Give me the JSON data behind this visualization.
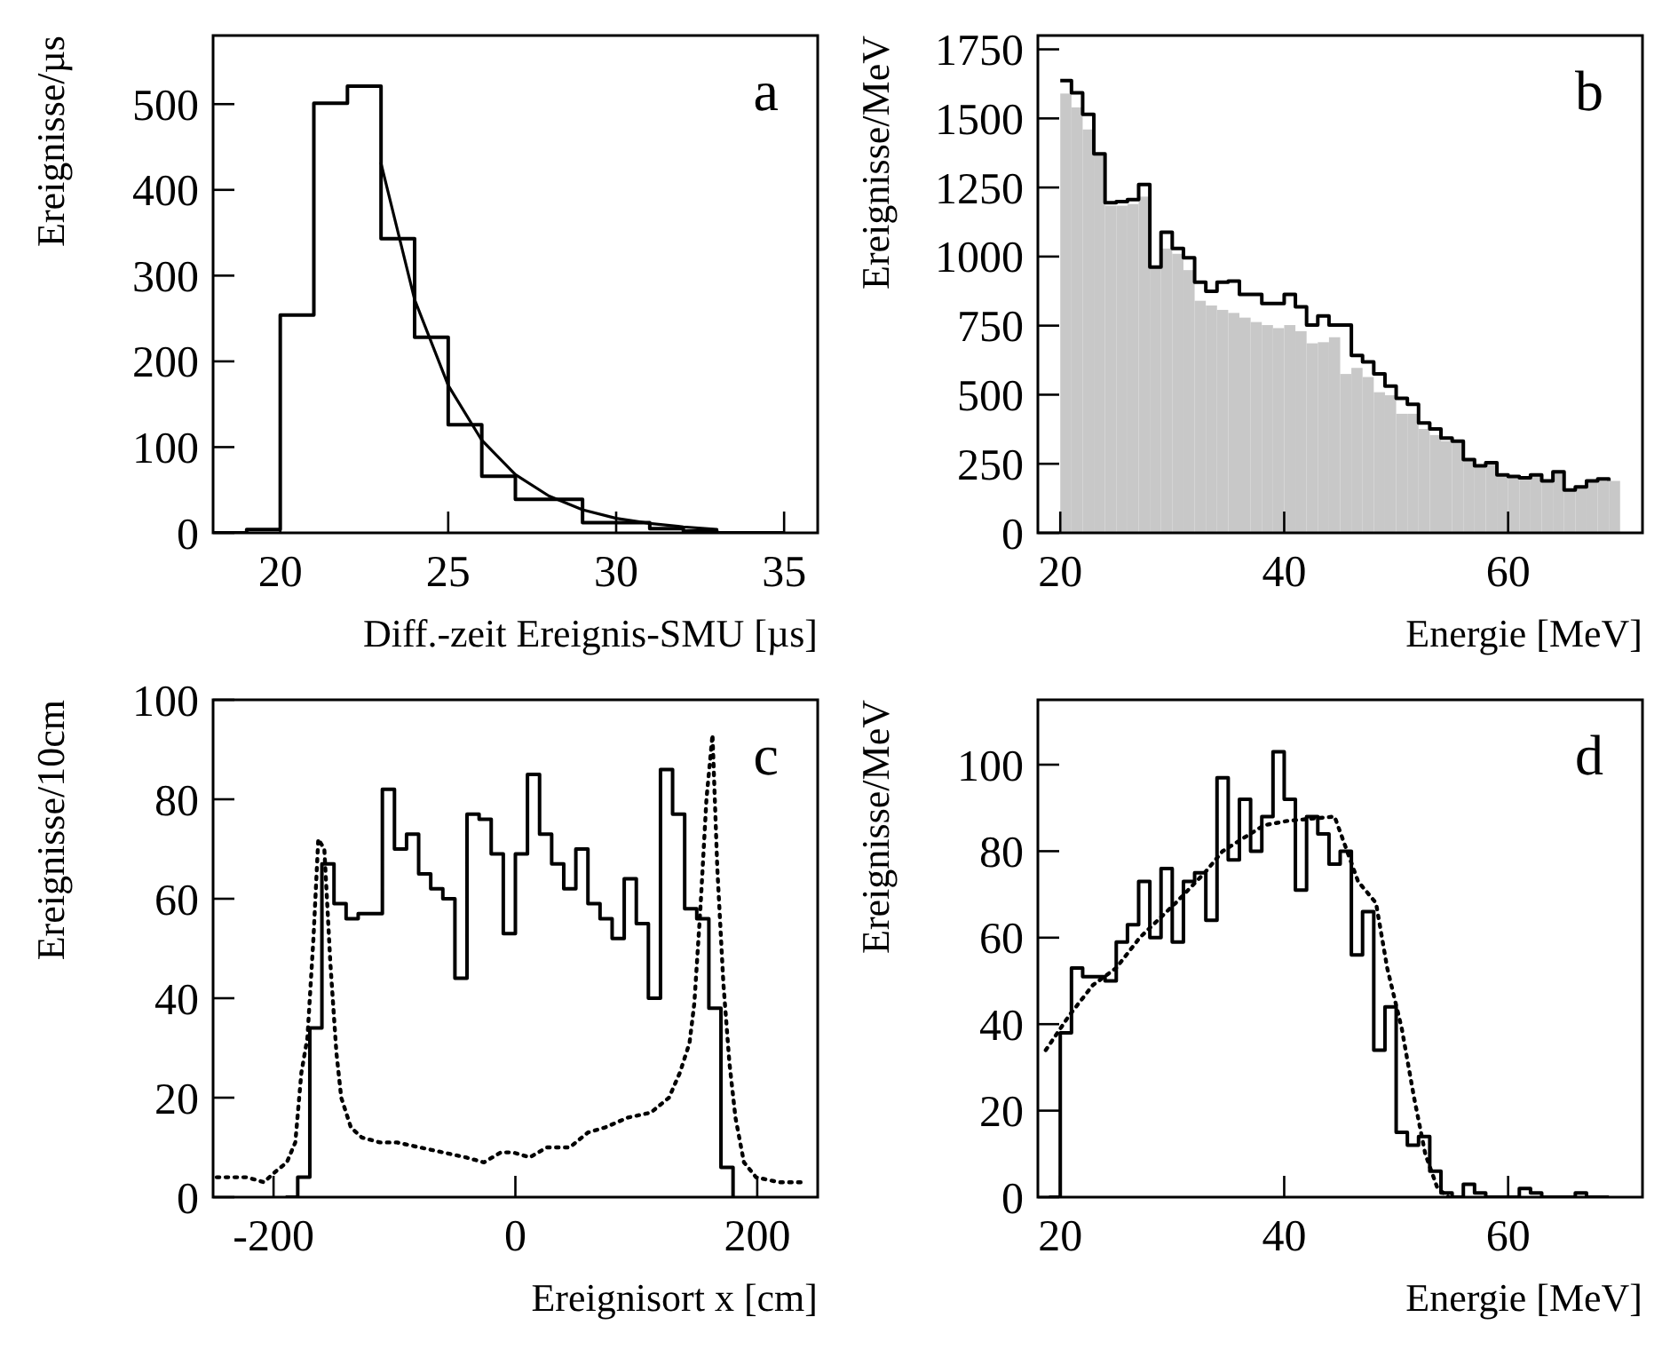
{
  "chart_data": [
    {
      "type": "histogram",
      "xlabel": "Diff.-zeit Ereignis-SMU [µs]",
      "ylabel": "Ereignisse/µs",
      "annotations": [
        "a"
      ],
      "xlim": [
        18,
        36
      ],
      "ylim": [
        0,
        580
      ],
      "xticks": [
        20,
        25,
        30,
        35
      ],
      "yticks": [
        0,
        100,
        200,
        300,
        400,
        500
      ],
      "series": [
        {
          "type": "step",
          "color": "#000000",
          "x": [
            18,
            19,
            20,
            21,
            22,
            23,
            24,
            25,
            26,
            27,
            28,
            29,
            30,
            31,
            32,
            33,
            34,
            35
          ],
          "values": [
            0,
            4,
            254,
            501,
            521,
            343,
            228,
            126,
            66,
            39,
            39,
            12,
            12,
            5,
            2,
            0,
            0,
            0
          ]
        },
        {
          "type": "line",
          "color": "#000000",
          "x": [
            23,
            24,
            25,
            26,
            27,
            28,
            29,
            30,
            31,
            32,
            33
          ],
          "values": [
            431,
            272,
            172,
            108,
            68,
            43,
            27,
            17,
            11,
            7,
            4
          ]
        }
      ]
    },
    {
      "type": "histogram",
      "xlabel": "Energie [MeV]",
      "ylabel": "Ereignisse/MeV",
      "annotations": [
        "b"
      ],
      "xlim": [
        18,
        72
      ],
      "ylim": [
        0,
        1800
      ],
      "xticks": [
        20,
        40,
        60
      ],
      "yticks": [
        0,
        250,
        500,
        750,
        1000,
        1250,
        1500,
        1750
      ],
      "bins": [
        20,
        21,
        22,
        23,
        24,
        25,
        26,
        27,
        28,
        29,
        30,
        31,
        32,
        33,
        34,
        35,
        36,
        37,
        38,
        39,
        40,
        41,
        42,
        43,
        44,
        45,
        46,
        47,
        48,
        49,
        50,
        51,
        52,
        53,
        54,
        55,
        56,
        57,
        58,
        59,
        60,
        61,
        62,
        63,
        64,
        65,
        66,
        67,
        68,
        69,
        70
      ],
      "series": [
        {
          "color": "#c8c8c8",
          "values": [
            1590,
            1540,
            1460,
            1372,
            1184,
            1184,
            1190,
            1217,
            962,
            1029,
            1010,
            951,
            840,
            823,
            807,
            796,
            779,
            763,
            752,
            741,
            752,
            730,
            686,
            690,
            708,
            575,
            597,
            564,
            509,
            498,
            431,
            431,
            376,
            354,
            332,
            332,
            265,
            243,
            254,
            210,
            204,
            199,
            210,
            188,
            221,
            155,
            166,
            188,
            195,
            188
          ]
        },
        {
          "type": "step",
          "color": "#000000",
          "x": [
            20,
            21,
            22,
            23,
            24,
            25,
            26,
            27,
            28,
            29,
            30,
            31,
            32,
            33,
            34,
            35,
            36,
            37,
            38,
            39,
            40,
            41,
            42,
            43,
            44,
            45,
            46,
            47,
            48,
            49,
            50,
            51,
            52,
            53,
            54,
            55,
            56,
            57,
            58,
            59,
            60,
            61,
            62,
            63,
            64,
            65,
            66,
            67,
            68,
            69
          ],
          "values": [
            1637,
            1593,
            1515,
            1372,
            1195,
            1199,
            1206,
            1261,
            962,
            1088,
            1029,
            996,
            907,
            874,
            907,
            911,
            863,
            863,
            830,
            830,
            863,
            818,
            752,
            785,
            752,
            752,
            642,
            619,
            575,
            531,
            487,
            465,
            398,
            376,
            343,
            332,
            265,
            243,
            254,
            210,
            204,
            199,
            210,
            188,
            221,
            155,
            166,
            188,
            195,
            188
          ]
        }
      ]
    },
    {
      "type": "histogram",
      "xlabel": "Ereignisort x [cm]",
      "ylabel": "Ereignisse/10cm",
      "annotations": [
        "c"
      ],
      "xlim": [
        -250,
        250
      ],
      "ylim": [
        0,
        100
      ],
      "xticks": [
        -200,
        0,
        200
      ],
      "yticks": [
        0,
        20,
        40,
        60,
        80,
        100
      ],
      "series": [
        {
          "type": "step",
          "color": "#000000",
          "x": [
            -190,
            -180,
            -170,
            -160,
            -150,
            -140,
            -130,
            -120,
            -110,
            -100,
            -90,
            -80,
            -70,
            -60,
            -50,
            -40,
            -30,
            -20,
            -10,
            0,
            10,
            20,
            30,
            40,
            50,
            60,
            70,
            80,
            90,
            100,
            110,
            120,
            130,
            140,
            150,
            160,
            170,
            180
          ],
          "values": [
            0,
            4,
            34,
            67,
            59,
            56,
            57,
            57,
            82,
            70,
            73,
            65,
            62,
            60,
            44,
            77,
            76,
            69,
            53,
            69,
            85,
            73,
            67,
            62,
            70,
            59,
            56,
            52,
            64,
            55,
            40,
            86,
            77,
            58,
            56,
            38,
            6,
            0
          ]
        },
        {
          "type": "line",
          "color": "#000000",
          "line_style": "dotted",
          "x": [
            -247,
            -222,
            -208,
            -199,
            -189,
            -182,
            -177,
            -172,
            -167,
            -163,
            -158,
            -153,
            -148,
            -144,
            -136,
            -127,
            -112,
            -98,
            -79,
            -60,
            -41,
            -26,
            -12,
            -2,
            12,
            26,
            45,
            60,
            74,
            93,
            112,
            127,
            136,
            144,
            148,
            153,
            158,
            163,
            167,
            172,
            177,
            182,
            189,
            199,
            218,
            240
          ],
          "values": [
            4,
            4,
            3,
            5,
            7,
            11,
            25,
            32,
            52,
            72,
            70,
            47,
            29,
            20,
            14,
            12,
            11,
            11,
            10,
            9,
            8,
            7,
            9,
            9,
            8,
            10,
            10,
            13,
            14,
            16,
            17,
            20,
            25,
            31,
            39,
            58,
            80,
            93,
            66,
            43,
            27,
            16,
            7,
            4,
            3,
            3
          ]
        }
      ]
    },
    {
      "type": "histogram",
      "xlabel": "Energie [MeV]",
      "ylabel": "Ereignisse/MeV",
      "annotations": [
        "d"
      ],
      "xlim": [
        18,
        72
      ],
      "ylim": [
        0,
        115
      ],
      "xticks": [
        20,
        40,
        60
      ],
      "yticks": [
        0,
        20,
        40,
        60,
        80,
        100
      ],
      "series": [
        {
          "type": "step",
          "color": "#000000",
          "x": [
            19,
            20,
            21,
            22,
            23,
            24,
            25,
            26,
            27,
            28,
            29,
            30,
            31,
            32,
            33,
            34,
            35,
            36,
            37,
            38,
            39,
            40,
            41,
            42,
            43,
            44,
            45,
            46,
            47,
            48,
            49,
            50,
            51,
            52,
            53,
            54,
            55,
            56,
            57,
            58,
            59,
            60,
            61,
            62,
            63,
            64,
            65,
            66,
            67,
            68,
            69
          ],
          "values": [
            0,
            38,
            53,
            51,
            51,
            50,
            59,
            63,
            73,
            60,
            76,
            59,
            73,
            75,
            64,
            97,
            78,
            92,
            80,
            88,
            103,
            92,
            71,
            88,
            84,
            77,
            80,
            56,
            66,
            34,
            44,
            15,
            12,
            14,
            6,
            1,
            0,
            3,
            1,
            0,
            0,
            0,
            2,
            1,
            0,
            0,
            0,
            1,
            0,
            0,
            0
          ]
        },
        {
          "type": "line",
          "color": "#000000",
          "line_style": "dotted",
          "x": [
            18.7,
            20.8,
            22.9,
            25,
            27.1,
            30.3,
            32.9,
            34.5,
            38.2,
            40.3,
            44.5,
            46.6,
            48.2,
            49.2,
            50.5,
            51.6,
            52.6,
            53.7,
            54.7
          ],
          "values": [
            34,
            42,
            49,
            53,
            60,
            68,
            75,
            80,
            86,
            87,
            88,
            73,
            68,
            53,
            39,
            23,
            10,
            2,
            0
          ]
        }
      ]
    }
  ]
}
